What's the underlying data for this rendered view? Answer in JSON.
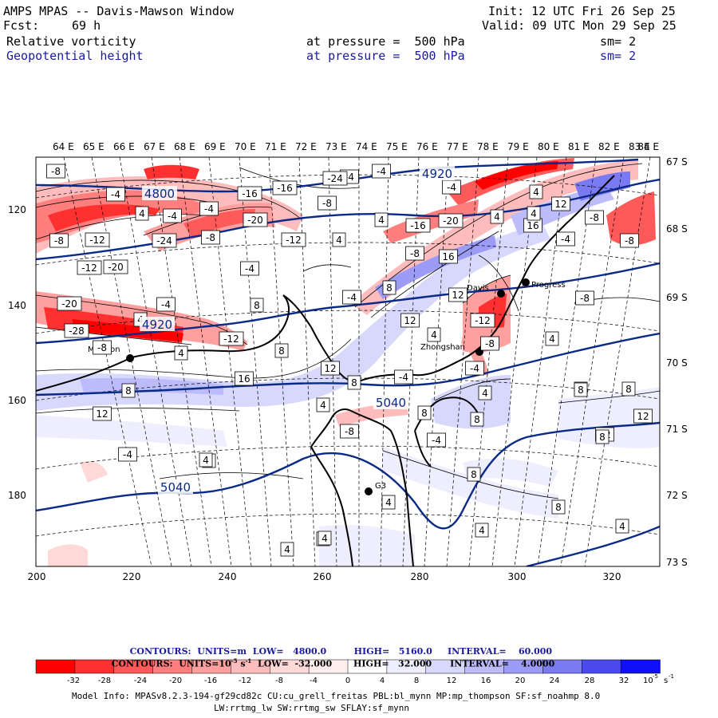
{
  "header": {
    "title": "AMPS MPAS -- Davis-Mawson Window",
    "fcst_label": "Fcst:",
    "fcst_value": "69 h",
    "init": "Init: 12 UTC Fri 26 Sep 25",
    "valid": "Valid: 09 UTC Mon 29 Sep 25",
    "field1": {
      "name": "Relative vorticity",
      "level": "at pressure =  500 hPa",
      "sm": "sm= 2"
    },
    "field2": {
      "name": "Geopotential height",
      "level": "at pressure =  500 hPa",
      "sm": "sm= 2"
    }
  },
  "axes": {
    "top_lon": [
      "64 E",
      "65 E",
      "66 E",
      "67 E",
      "68 E",
      "69 E",
      "70 E",
      "71 E",
      "72 E",
      "73 E",
      "74 E",
      "75 E",
      "76 E",
      "77 E",
      "78 E",
      "79 E",
      "80 E",
      "81 E",
      "82 E",
      "83 E",
      "84 E"
    ],
    "right_lat": [
      "67 S",
      "68 S",
      "69 S",
      "70 S",
      "71 S",
      "72 S",
      "73 S"
    ],
    "left_y": [
      "120",
      "140",
      "160",
      "180"
    ],
    "bottom_x": [
      "200",
      "220",
      "240",
      "260",
      "280",
      "300",
      "320"
    ]
  },
  "stations": [
    {
      "name": "Mawson"
    },
    {
      "name": "Davis"
    },
    {
      "name": "Zhongshan"
    },
    {
      "name": "Progress"
    },
    {
      "name": "G3"
    }
  ],
  "contour_labels": {
    "vort": [
      "-8",
      "-4",
      "4",
      "-4",
      "-4",
      "-8",
      "-16",
      "-16",
      "-8",
      "4",
      "-4",
      "-4",
      "-4",
      "-24",
      "4",
      "12",
      "-12",
      "-24",
      "-20",
      "-8",
      "4",
      "-16",
      "-20",
      "4",
      "16",
      "-8",
      "-8",
      "-12",
      "-20",
      "-12",
      "-4",
      "8",
      "4",
      "16",
      "12",
      "-4",
      "-8",
      "4",
      "12",
      "8",
      "-8",
      "-20",
      "8",
      "-4",
      "12",
      "4",
      "-12",
      "-4",
      "-28",
      "-12",
      "4",
      "8",
      "4",
      "12",
      "-8",
      "8",
      "16",
      "-4",
      "-4",
      "-4",
      "8",
      "4",
      "8",
      "12",
      "4",
      "-8",
      "4",
      "-8",
      "-4",
      "8",
      "8",
      "12",
      "4",
      "8",
      "4",
      "4",
      "8",
      "8",
      "4",
      "4",
      "8",
      "4",
      "4"
    ],
    "geo": [
      "4800",
      "4920",
      "4920",
      "5040",
      "5040"
    ]
  },
  "footer": {
    "line1": {
      "contours": "CONTOURS:",
      "units": "UNITS=m",
      "low": "LOW=   4800.0",
      "high": "HIGH=   5160.0",
      "interval": "INTERVAL=    60.000"
    },
    "line2": {
      "contours": "CONTOURS:",
      "units": "UNITS=10",
      "units_exp": "-5",
      "units_s": "s",
      "units_s_exp": "-1",
      "low": "LOW=  -32.000",
      "high": "HIGH=   32.000",
      "interval": "INTERVAL=    4.0000"
    },
    "colorbar_ticks": [
      "-32",
      "-28",
      "-24",
      "-20",
      "-16",
      "-12",
      "-8",
      "-4",
      "0",
      "4",
      "8",
      "12",
      "16",
      "20",
      "24",
      "28",
      "32"
    ],
    "colorbar_unit": "10",
    "colorbar_unit_exp": "-5",
    "colorbar_unit_s": "s",
    "colorbar_unit_s_exp": "-1",
    "model_info_1": "Model Info: MPASv8.2.3-194-gf29cd82c CU:cu_grell_freitas PBL:bl_mynn MP:mp_thompson SF:sf_noahmp 8.0",
    "model_info_2": "LW:rrtmg_lw SW:rrtmg_sw SFLAY:sf_mynn"
  },
  "colors": {
    "neg": [
      "#ff0000",
      "#ff3030",
      "#ff5a5a",
      "#ff7e7e",
      "#ffa0a0",
      "#ffbcbc",
      "#ffd8d8",
      "#ffeeee"
    ],
    "pos": [
      "#ffffff",
      "#eeeefe",
      "#d8d8fc",
      "#bcbcfa",
      "#9c9cf6",
      "#7a7af2",
      "#4a4aee",
      "#1010f8"
    ],
    "geo_line": "#0a2a88",
    "header_blue": "#1a1aa0"
  }
}
